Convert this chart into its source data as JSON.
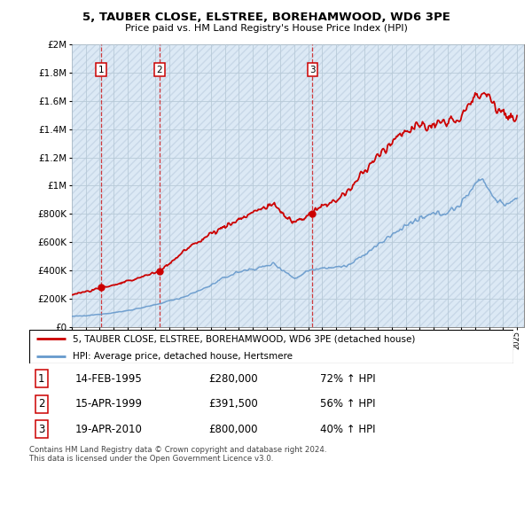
{
  "title": "5, TAUBER CLOSE, ELSTREE, BOREHAMWOOD, WD6 3PE",
  "subtitle": "Price paid vs. HM Land Registry's House Price Index (HPI)",
  "sales": [
    {
      "date": 1995.12,
      "price": 280000,
      "label": "1"
    },
    {
      "date": 1999.29,
      "price": 391500,
      "label": "2"
    },
    {
      "date": 2010.3,
      "price": 800000,
      "label": "3"
    }
  ],
  "sale_color": "#cc0000",
  "hpi_color": "#6699cc",
  "bg_color": "#dce9f5",
  "hatch_color": "#b0c4d8",
  "ylim": [
    0,
    2000000
  ],
  "yticks": [
    0,
    200000,
    400000,
    600000,
    800000,
    1000000,
    1200000,
    1400000,
    1600000,
    1800000,
    2000000
  ],
  "ytick_labels": [
    "£0",
    "£200K",
    "£400K",
    "£600K",
    "£800K",
    "£1M",
    "£1.2M",
    "£1.4M",
    "£1.6M",
    "£1.8M",
    "£2M"
  ],
  "legend_line1": "5, TAUBER CLOSE, ELSTREE, BOREHAMWOOD, WD6 3PE (detached house)",
  "legend_line2": "HPI: Average price, detached house, Hertsmere",
  "table_rows": [
    {
      "num": "1",
      "date": "14-FEB-1995",
      "price": "£280,000",
      "hpi": "72% ↑ HPI"
    },
    {
      "num": "2",
      "date": "15-APR-1999",
      "price": "£391,500",
      "hpi": "56% ↑ HPI"
    },
    {
      "num": "3",
      "date": "19-APR-2010",
      "price": "£800,000",
      "hpi": "40% ↑ HPI"
    }
  ],
  "footnote": "Contains HM Land Registry data © Crown copyright and database right 2024.\nThis data is licensed under the Open Government Licence v3.0.",
  "hpi_anchors_x": [
    1993.0,
    1994.0,
    1995.0,
    1996.0,
    1997.0,
    1998.0,
    1999.0,
    2000.0,
    2001.0,
    2002.0,
    2003.0,
    2004.0,
    2005.0,
    2006.0,
    2007.0,
    2007.5,
    2008.5,
    2009.0,
    2009.5,
    2010.0,
    2011.0,
    2012.0,
    2013.0,
    2014.0,
    2015.0,
    2016.0,
    2017.0,
    2018.0,
    2019.0,
    2020.0,
    2021.0,
    2022.0,
    2022.5,
    2023.0,
    2023.5,
    2024.0,
    2024.5,
    2025.0
  ],
  "hpi_anchors_y": [
    75000,
    78000,
    90000,
    100000,
    115000,
    135000,
    155000,
    185000,
    210000,
    250000,
    295000,
    350000,
    390000,
    410000,
    430000,
    450000,
    380000,
    340000,
    370000,
    400000,
    420000,
    420000,
    440000,
    510000,
    580000,
    650000,
    720000,
    760000,
    800000,
    810000,
    870000,
    1020000,
    1060000,
    960000,
    900000,
    870000,
    880000,
    890000
  ],
  "sale_anchors_x": [
    1993.0,
    1994.5,
    1995.12,
    1996.0,
    1997.0,
    1998.0,
    1999.0,
    1999.29,
    2000.0,
    2001.0,
    2002.0,
    2003.0,
    2004.0,
    2005.0,
    2006.0,
    2007.0,
    2007.5,
    2008.0,
    2008.5,
    2009.0,
    2009.5,
    2010.0,
    2010.3,
    2011.0,
    2012.0,
    2013.0,
    2014.0,
    2015.0,
    2016.0,
    2017.0,
    2018.0,
    2019.0,
    2020.0,
    2021.0,
    2022.0,
    2022.5,
    2023.0,
    2023.5,
    2024.0,
    2024.5,
    2025.0
  ],
  "sale_anchors_y": [
    230000,
    260000,
    280000,
    295000,
    320000,
    355000,
    385000,
    391500,
    450000,
    530000,
    600000,
    660000,
    710000,
    760000,
    810000,
    850000,
    870000,
    820000,
    770000,
    740000,
    760000,
    790000,
    800000,
    850000,
    900000,
    970000,
    1100000,
    1200000,
    1320000,
    1390000,
    1420000,
    1430000,
    1440000,
    1500000,
    1620000,
    1680000,
    1640000,
    1560000,
    1510000,
    1480000,
    1460000
  ]
}
